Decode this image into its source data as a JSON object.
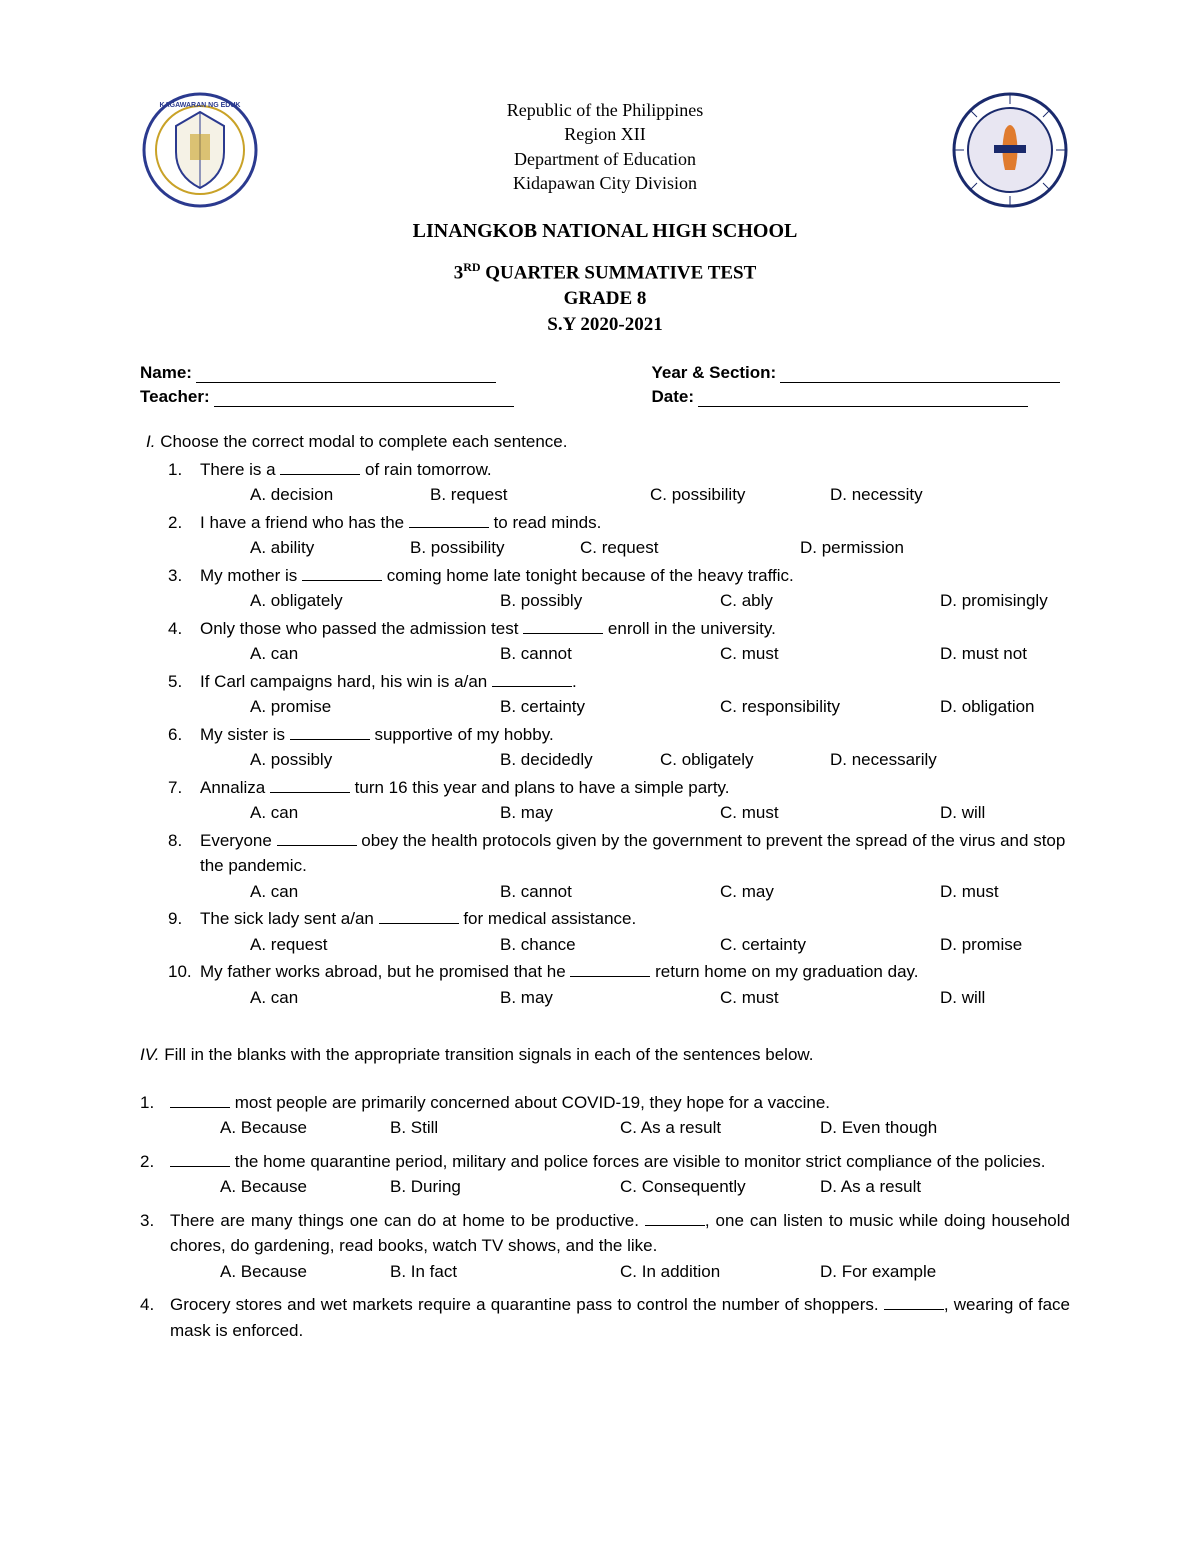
{
  "header": {
    "line1": "Republic of the Philippines",
    "line2": "Region XII",
    "line3": "Department of Education",
    "line4": "Kidapawan City Division",
    "school": "LINANGKOB NATIONAL HIGH SCHOOL",
    "quarter_sup": "RD",
    "quarter_num": "3",
    "test_line1_rest": " QUARTER SUMMATIVE TEST",
    "test_line2": "GRADE 8",
    "test_line3": "S.Y 2020-2021"
  },
  "info": {
    "name_label": "Name:",
    "year_label": "Year & Section:",
    "teacher_label": "Teacher:",
    "date_label": "Date:"
  },
  "section1": {
    "instr_prefix": "I.",
    "instr": "Choose the correct modal to complete each sentence.",
    "questions": [
      {
        "num": "1.",
        "before": "There is a ",
        "after": " of rain tomorrow.",
        "choices": [
          "A.  decision",
          "B. request",
          "C. possibility",
          "D. necessity"
        ],
        "layout": "a"
      },
      {
        "num": "2.",
        "before": "I have a friend who has the ",
        "after": " to read minds.",
        "choices": [
          "A.  ability",
          "B. possibility",
          "C. request",
          "D. permission"
        ],
        "layout": "b"
      },
      {
        "num": "3.",
        "before": "My mother is ",
        "after": " coming home late tonight because of the heavy traffic.",
        "choices": [
          "A.  obligately",
          "B. possibly",
          "C. ably",
          "D. promisingly"
        ],
        "layout": "c"
      },
      {
        "num": "4.",
        "before": "Only those who passed the admission test ",
        "after": " enroll in the university.",
        "choices": [
          "A.  can",
          "B. cannot",
          "C. must",
          "D. must not"
        ],
        "layout": "c"
      },
      {
        "num": "5.",
        "before": "If Carl campaigns hard, his win is a/an ",
        "after": ".",
        "choices": [
          "A.  promise",
          "B. certainty",
          "C. responsibility",
          "D. obligation"
        ],
        "layout": "c"
      },
      {
        "num": "6.",
        "before": "My sister is ",
        "after": " supportive of my hobby.",
        "choices": [
          "A.  possibly",
          "B. decidedly",
          "C. obligately",
          "D. necessarily"
        ],
        "layout": "d"
      },
      {
        "num": "7.",
        "before": "Annaliza ",
        "after": " turn 16 this year and plans to have a simple party.",
        "choices": [
          "A.  can",
          "B. may",
          "C. must",
          "D. will"
        ],
        "layout": "c"
      },
      {
        "num": "8.",
        "before": "Everyone ",
        "after": " obey the health protocols given by the government to prevent the spread of the virus and stop the pandemic.",
        "choices": [
          "A.  can",
          "B. cannot",
          "C. may",
          "D. must"
        ],
        "layout": "c"
      },
      {
        "num": "9.",
        "before": "The sick lady sent a/an ",
        "after": " for medical assistance.",
        "choices": [
          "A.  request",
          "B. chance",
          "C. certainty",
          "D. promise"
        ],
        "layout": "c"
      },
      {
        "num": "10.",
        "before": "My father works abroad, but he promised that he ",
        "after": " return home on my graduation day.",
        "choices": [
          "A.  can",
          "B. may",
          "C. must",
          "D. will"
        ],
        "layout": "c"
      }
    ]
  },
  "section4": {
    "instr_prefix": "IV.",
    "instr": "Fill in the blanks with the appropriate transition signals in each of the sentences below.",
    "questions": [
      {
        "num": "1.",
        "text_before": "",
        "text_after": " most people are primarily concerned about COVID-19, they hope for a vaccine.",
        "choices": [
          "A.  Because",
          "B. Still",
          "C. As a result",
          "D. Even though"
        ]
      },
      {
        "num": "2.",
        "text_before": "",
        "text_after": " the home quarantine period, military and police forces are visible to monitor strict compliance of the policies.",
        "choices": [
          "A.  Because",
          "B. During",
          "C. Consequently",
          "D. As a result"
        ]
      },
      {
        "num": "3.",
        "text_before": "There are many things one can do at home to be productive. ",
        "text_after": ", one can listen to music while doing household chores, do gardening, read books, watch TV shows, and the like.",
        "choices": [
          "A.  Because",
          "B. In fact",
          "C. In addition",
          "D. For example"
        ]
      },
      {
        "num": "4.",
        "text_before": "Grocery stores and wet markets require a quarantine pass to control the number of shoppers. ",
        "text_after": ", wearing of face mask is enforced.",
        "choices": []
      }
    ]
  },
  "colors": {
    "text": "#000000",
    "background": "#ffffff",
    "seal_blue": "#2b3a8f",
    "seal_gold": "#c9a227",
    "seal_navy": "#1a2a6c"
  }
}
